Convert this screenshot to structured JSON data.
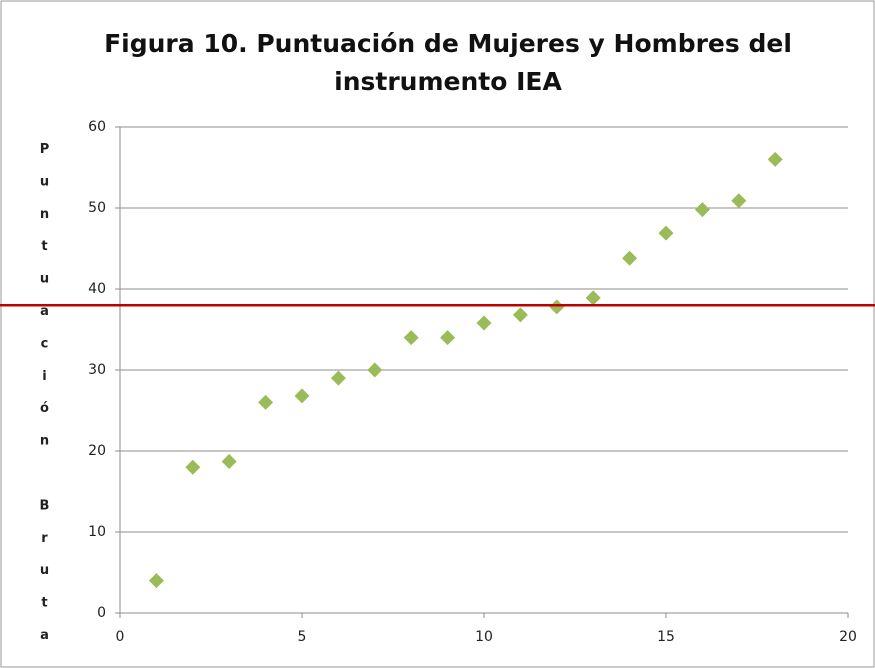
{
  "chart_data": {
    "type": "scatter",
    "title": [
      "Figura 10. Puntuación de Mujeres y Hombres del",
      "instrumento IEA"
    ],
    "y_label": "Puntuación Bruta",
    "x": [
      1,
      2,
      3,
      4,
      5,
      6,
      7,
      8,
      9,
      10,
      11,
      12,
      13,
      14,
      15,
      16,
      17,
      18
    ],
    "values": [
      4,
      18,
      18.7,
      26,
      26.8,
      29,
      30,
      34,
      34,
      35.8,
      36.8,
      37.8,
      38.9,
      43.8,
      46.9,
      49.8,
      50.9,
      56
    ],
    "color": "#9bbb59",
    "reference_line": 38,
    "reference_color": "#c00000",
    "xlim": [
      0,
      20
    ],
    "xticks": [
      0,
      5,
      10,
      15,
      20
    ],
    "ylim": [
      0,
      60
    ],
    "yticks": [
      0,
      10,
      20,
      30,
      40,
      50,
      60
    ],
    "grid": true
  }
}
